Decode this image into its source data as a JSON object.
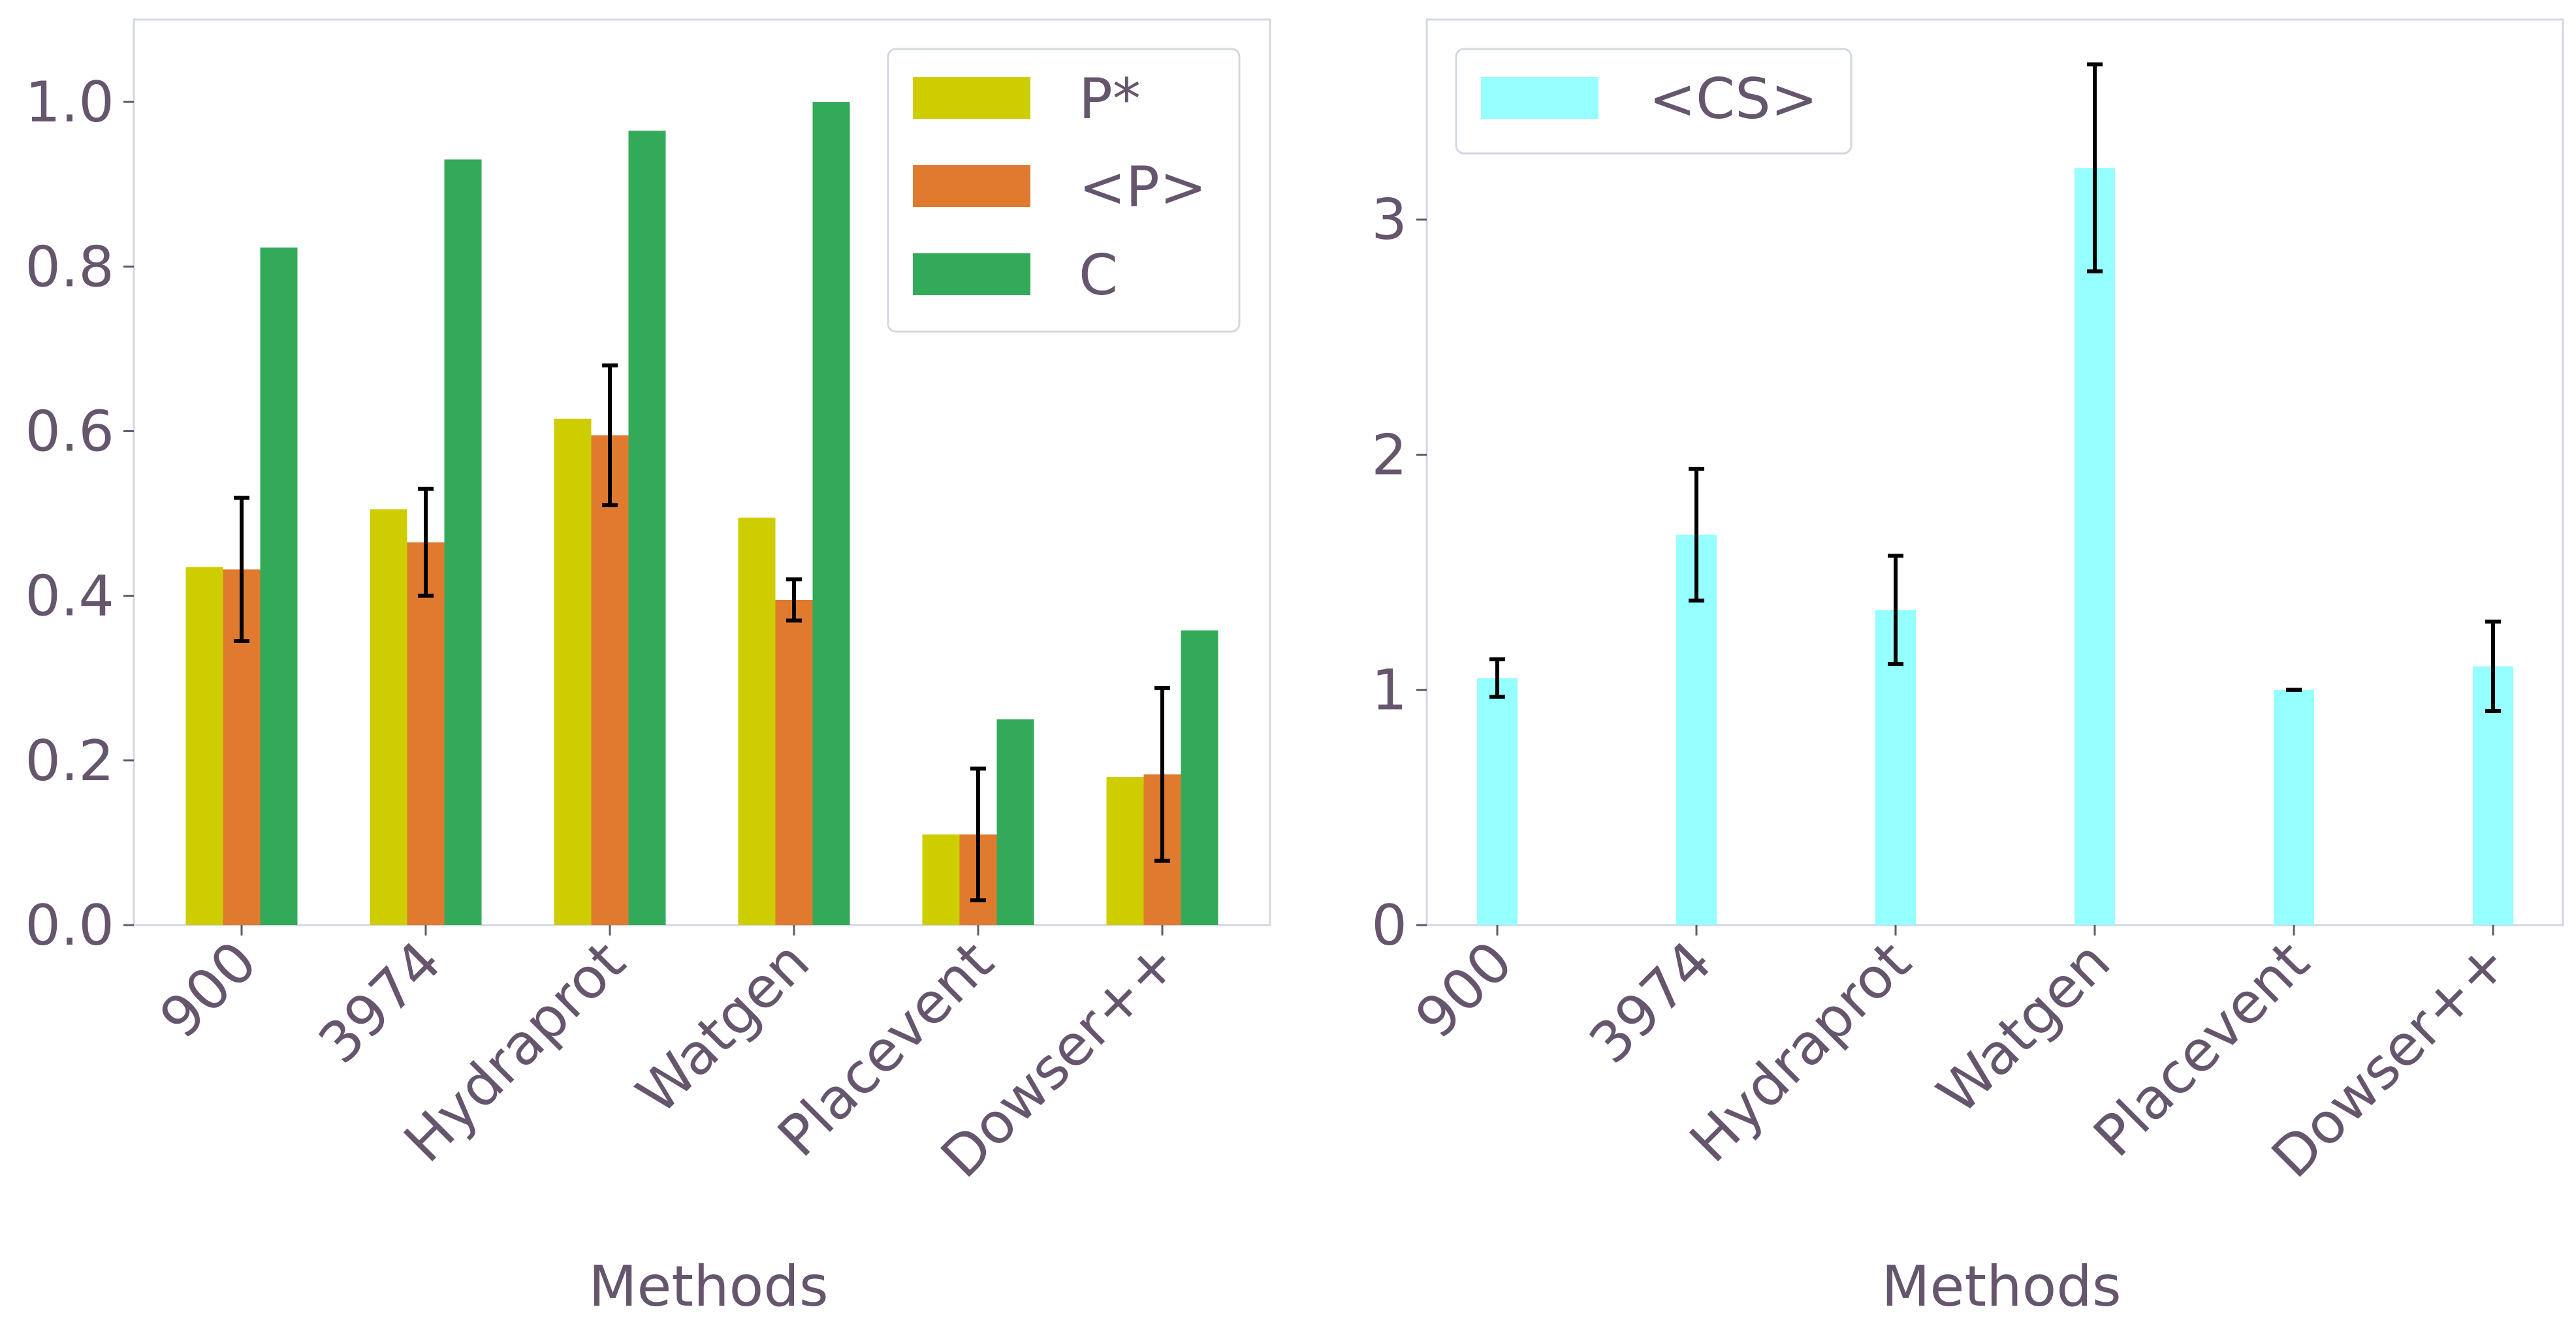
{
  "colors": {
    "text": "#65566e",
    "axis_frame": "#d3d7e1",
    "p_star": "#cdcd00",
    "p_mean": "#e07a2f",
    "c": "#33aa5a",
    "cs": "#96ffff",
    "error_bar": "#000000"
  },
  "chart_data": [
    {
      "type": "bar",
      "title": "",
      "xlabel": "Methods",
      "ylabel": "",
      "categories": [
        "900",
        "3974",
        "Hydraprot",
        "Watgen",
        "Placevent",
        "Dowser++"
      ],
      "ylim": [
        0,
        1.1
      ],
      "yticks": [
        0.0,
        0.2,
        0.4,
        0.6,
        0.8,
        1.0
      ],
      "ytick_labels": [
        "0.0",
        "0.2",
        "0.4",
        "0.6",
        "0.8",
        "1.0"
      ],
      "grid": false,
      "legend_position": "top-right",
      "series": [
        {
          "name": "P*",
          "values": [
            0.435,
            0.505,
            0.615,
            0.495,
            0.11,
            0.18
          ]
        },
        {
          "name": "<P>",
          "values": [
            0.432,
            0.465,
            0.595,
            0.395,
            0.11,
            0.183
          ],
          "errors": [
            0.087,
            0.065,
            0.085,
            0.025,
            0.08,
            0.105
          ]
        },
        {
          "name": "C",
          "values": [
            0.823,
            0.93,
            0.965,
            1.0,
            0.25,
            0.358
          ]
        }
      ]
    },
    {
      "type": "bar",
      "title": "",
      "xlabel": "Methods",
      "ylabel": "",
      "categories": [
        "900",
        "3974",
        "Hydraprot",
        "Watgen",
        "Placevent",
        "Dowser++"
      ],
      "ylim": [
        0,
        3.85
      ],
      "yticks": [
        0,
        1,
        2,
        3
      ],
      "ytick_labels": [
        "0",
        "1",
        "2",
        "3"
      ],
      "grid": false,
      "legend_position": "top-left",
      "series": [
        {
          "name": "<CS>",
          "values": [
            1.05,
            1.66,
            1.34,
            3.22,
            1.0,
            1.1
          ],
          "errors": [
            0.08,
            0.28,
            0.23,
            0.44,
            0.0,
            0.19
          ]
        }
      ]
    }
  ]
}
